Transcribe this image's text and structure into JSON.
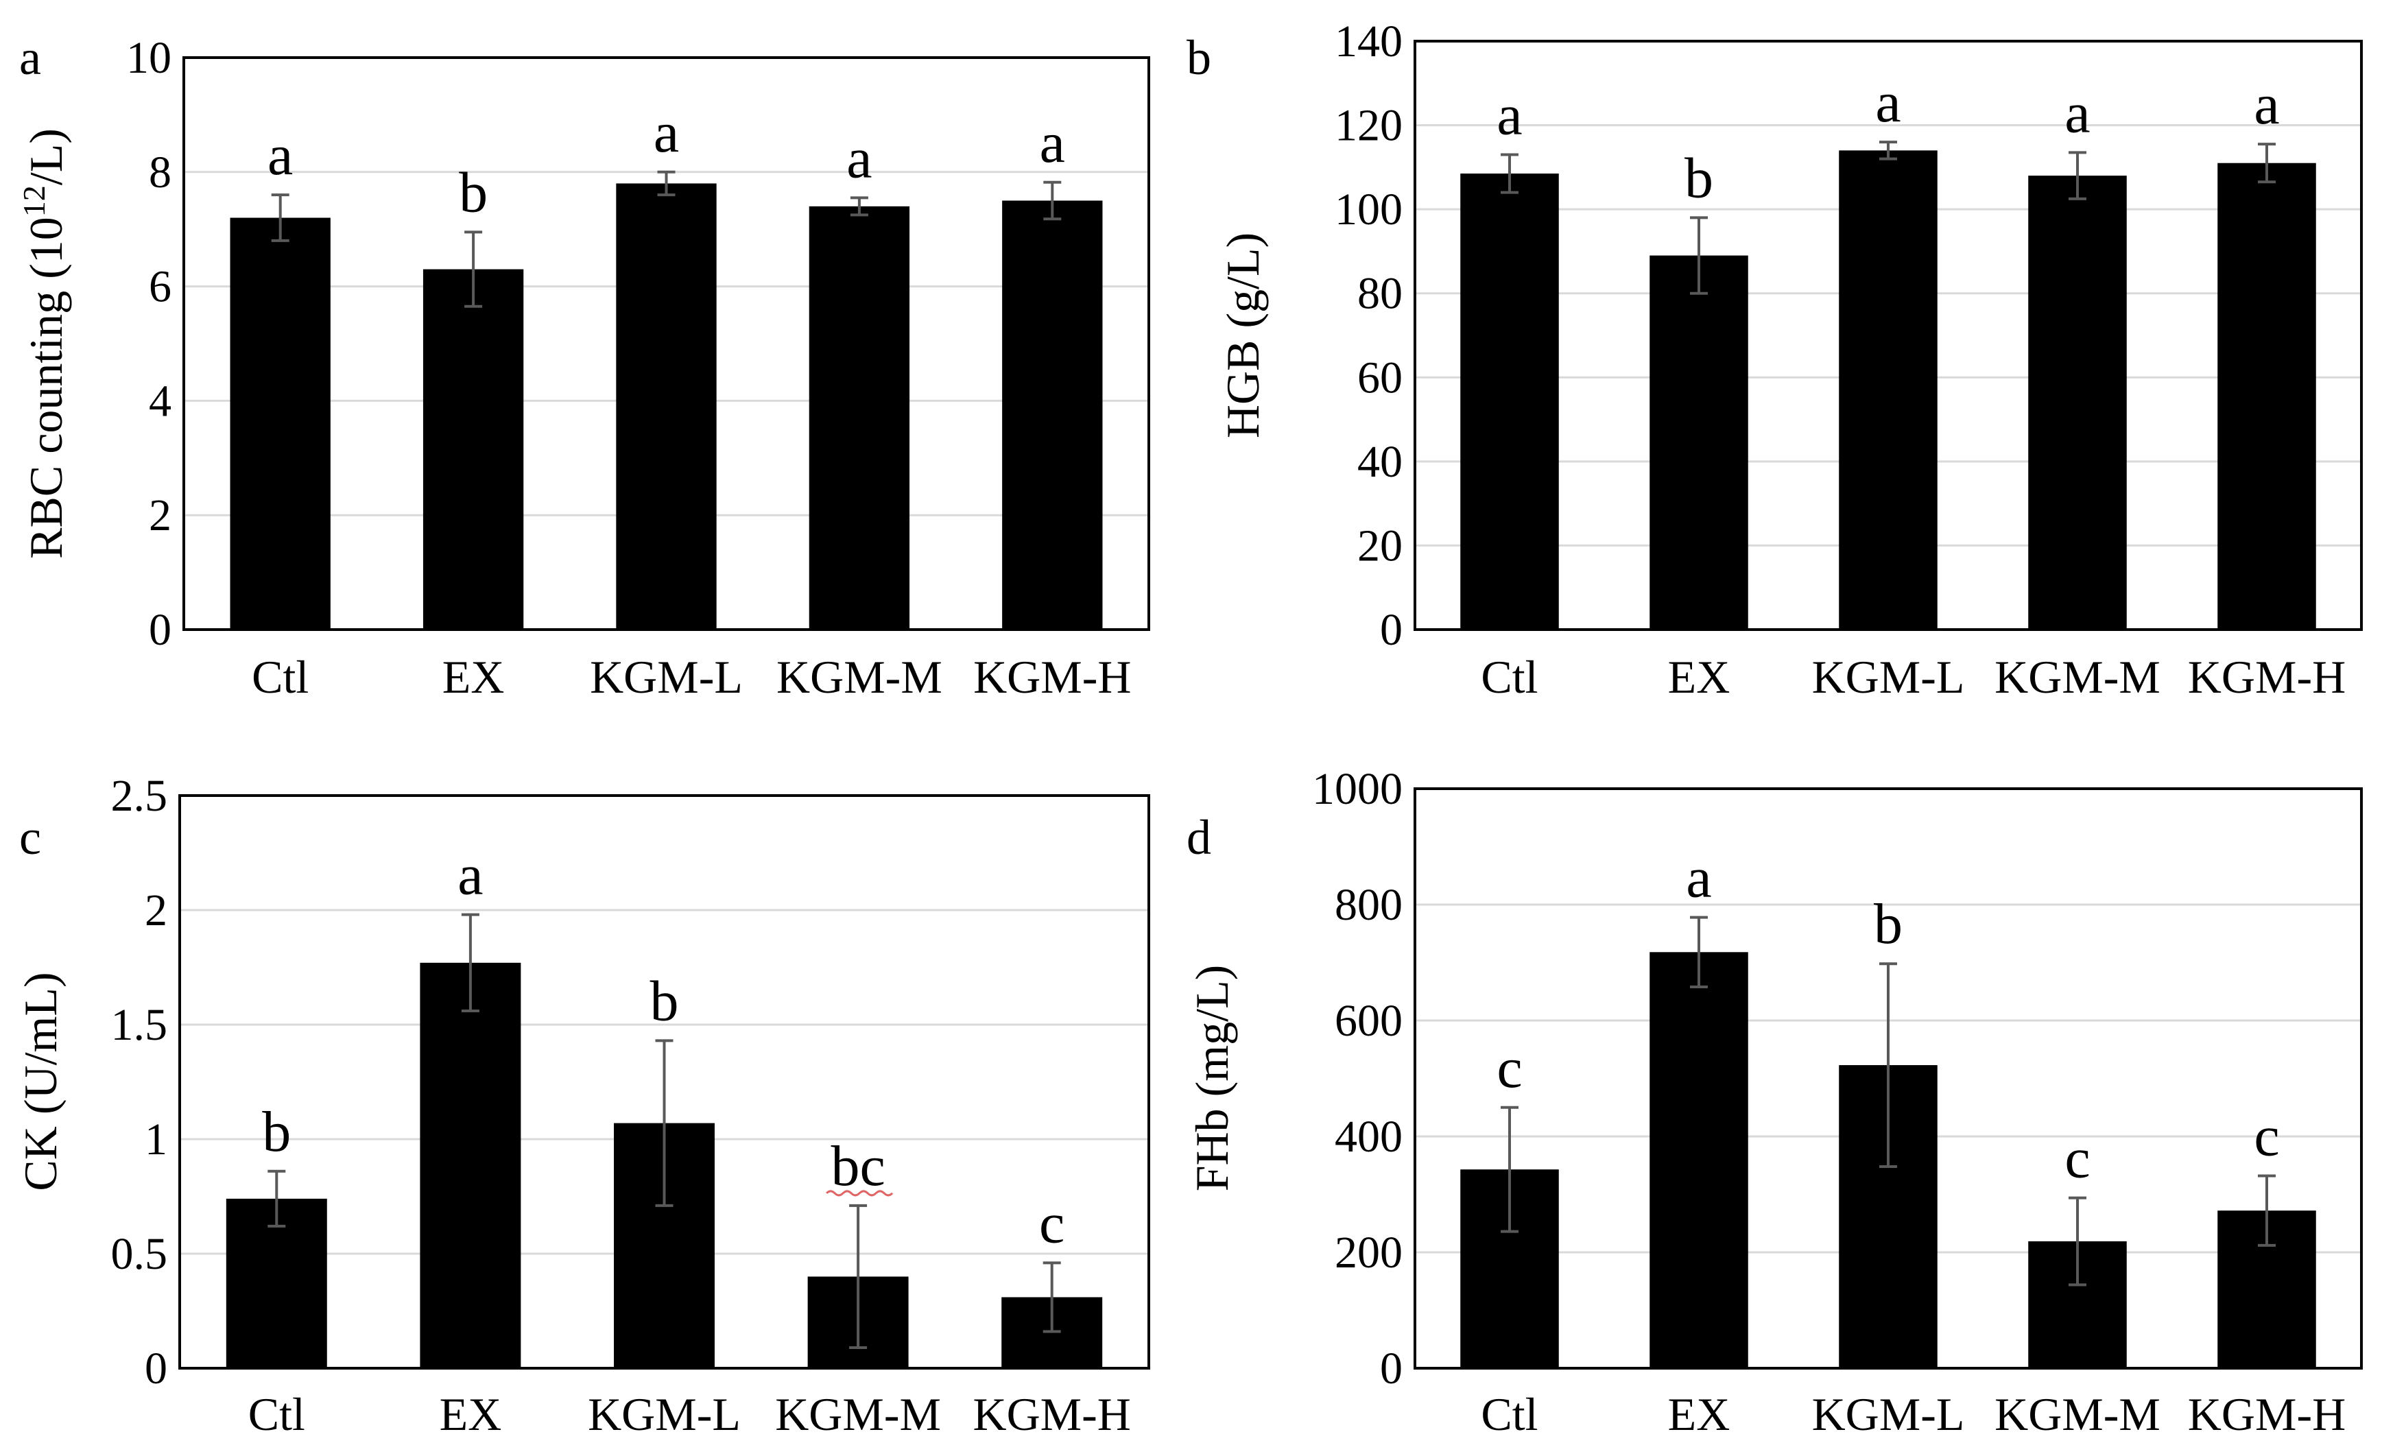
{
  "colors": {
    "bar": "#000000",
    "grid": "#d9d9d9",
    "error_bar": "#595959",
    "axis": "#000000",
    "sig_underline": "#e06666"
  },
  "chart_data": [
    {
      "panel_label": "a",
      "type": "bar",
      "ylabel_main": "RBC counting (10",
      "ylabel_sup": "12",
      "ylabel_end": "/L)",
      "ylim": [
        0,
        10
      ],
      "ytick_values": [
        0,
        2,
        4,
        6,
        8,
        10
      ],
      "ytick_labels": [
        "0",
        "2",
        "4",
        "6",
        "8",
        "10"
      ],
      "grid": true,
      "categories": [
        "Ctl",
        "EX",
        "KGM-L",
        "KGM-M",
        "KGM-H"
      ],
      "values": [
        7.2,
        6.3,
        7.8,
        7.4,
        7.5
      ],
      "errors": [
        0.4,
        0.65,
        0.2,
        0.15,
        0.32
      ],
      "significance": [
        "a",
        "b",
        "a",
        "a",
        "a"
      ]
    },
    {
      "panel_label": "b",
      "type": "bar",
      "ylabel_main": "HGB (g/L)",
      "ylim": [
        0,
        140
      ],
      "ytick_values": [
        0,
        20,
        40,
        60,
        80,
        100,
        120,
        140
      ],
      "ytick_labels": [
        "0",
        "20",
        "40",
        "60",
        "80",
        "100",
        "120",
        "140"
      ],
      "grid": true,
      "categories": [
        "Ctl",
        "EX",
        "KGM-L",
        "KGM-M",
        "KGM-H"
      ],
      "values": [
        108.5,
        89,
        114,
        108,
        111
      ],
      "errors": [
        4.5,
        9,
        2,
        5.5,
        4.5
      ],
      "significance": [
        "a",
        "b",
        "a",
        "a",
        "a"
      ]
    },
    {
      "panel_label": "c",
      "type": "bar",
      "ylabel_main": "CK (U/mL)",
      "ylim": [
        0,
        2.5
      ],
      "ytick_values": [
        0,
        0.5,
        1,
        1.5,
        2,
        2.5
      ],
      "ytick_labels": [
        "0",
        "0.5",
        "1",
        "1.5",
        "2",
        "2.5"
      ],
      "grid": true,
      "categories": [
        "Ctl",
        "EX",
        "KGM-L",
        "KGM-M",
        "KGM-H"
      ],
      "values": [
        0.74,
        1.77,
        1.07,
        0.4,
        0.31
      ],
      "errors": [
        0.12,
        0.21,
        0.36,
        0.31,
        0.15
      ],
      "significance": [
        "b",
        "a",
        "b",
        "bc",
        "c"
      ],
      "underlined_significance_index": 3
    },
    {
      "panel_label": "d",
      "type": "bar",
      "ylabel_main": "FHb (mg/L)",
      "ylim": [
        0,
        1000
      ],
      "ytick_values": [
        0,
        200,
        400,
        600,
        800,
        1000
      ],
      "ytick_labels": [
        "0",
        "200",
        "400",
        "600",
        "800",
        "1000"
      ],
      "grid": true,
      "categories": [
        "Ctl",
        "EX",
        "KGM-L",
        "KGM-M",
        "KGM-H"
      ],
      "values": [
        343,
        718,
        523,
        219,
        272
      ],
      "errors": [
        107,
        60,
        175,
        75,
        60
      ],
      "significance": [
        "c",
        "a",
        "b",
        "c",
        "c"
      ]
    }
  ]
}
